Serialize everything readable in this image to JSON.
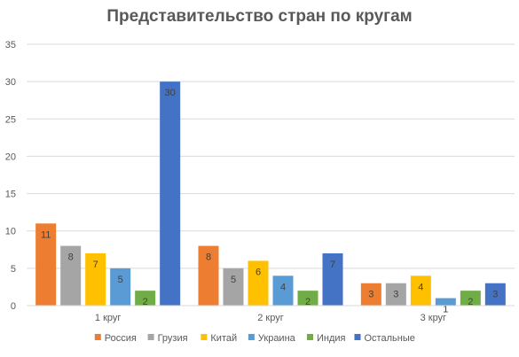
{
  "chart_data": {
    "type": "bar",
    "title": "Представительство стран по кругам",
    "categories": [
      "1 круг",
      "2 круг",
      "3 круг"
    ],
    "series": [
      {
        "name": "Россия",
        "color": "#ED7D31",
        "values": [
          11,
          8,
          3
        ]
      },
      {
        "name": "Грузия",
        "color": "#A5A5A5",
        "values": [
          8,
          5,
          3
        ]
      },
      {
        "name": "Китай",
        "color": "#FFC000",
        "values": [
          7,
          6,
          4
        ]
      },
      {
        "name": "Украина",
        "color": "#5B9BD5",
        "values": [
          5,
          4,
          1
        ]
      },
      {
        "name": "Индия",
        "color": "#70AD47",
        "values": [
          2,
          2,
          2
        ]
      },
      {
        "name": "Остальные",
        "color": "#4472C4",
        "values": [
          30,
          7,
          3
        ]
      }
    ],
    "ylim": [
      0,
      35
    ],
    "yticks": [
      0,
      5,
      10,
      15,
      20,
      25,
      30,
      35
    ],
    "grid": true,
    "legend_position": "bottom",
    "data_labels": true
  }
}
